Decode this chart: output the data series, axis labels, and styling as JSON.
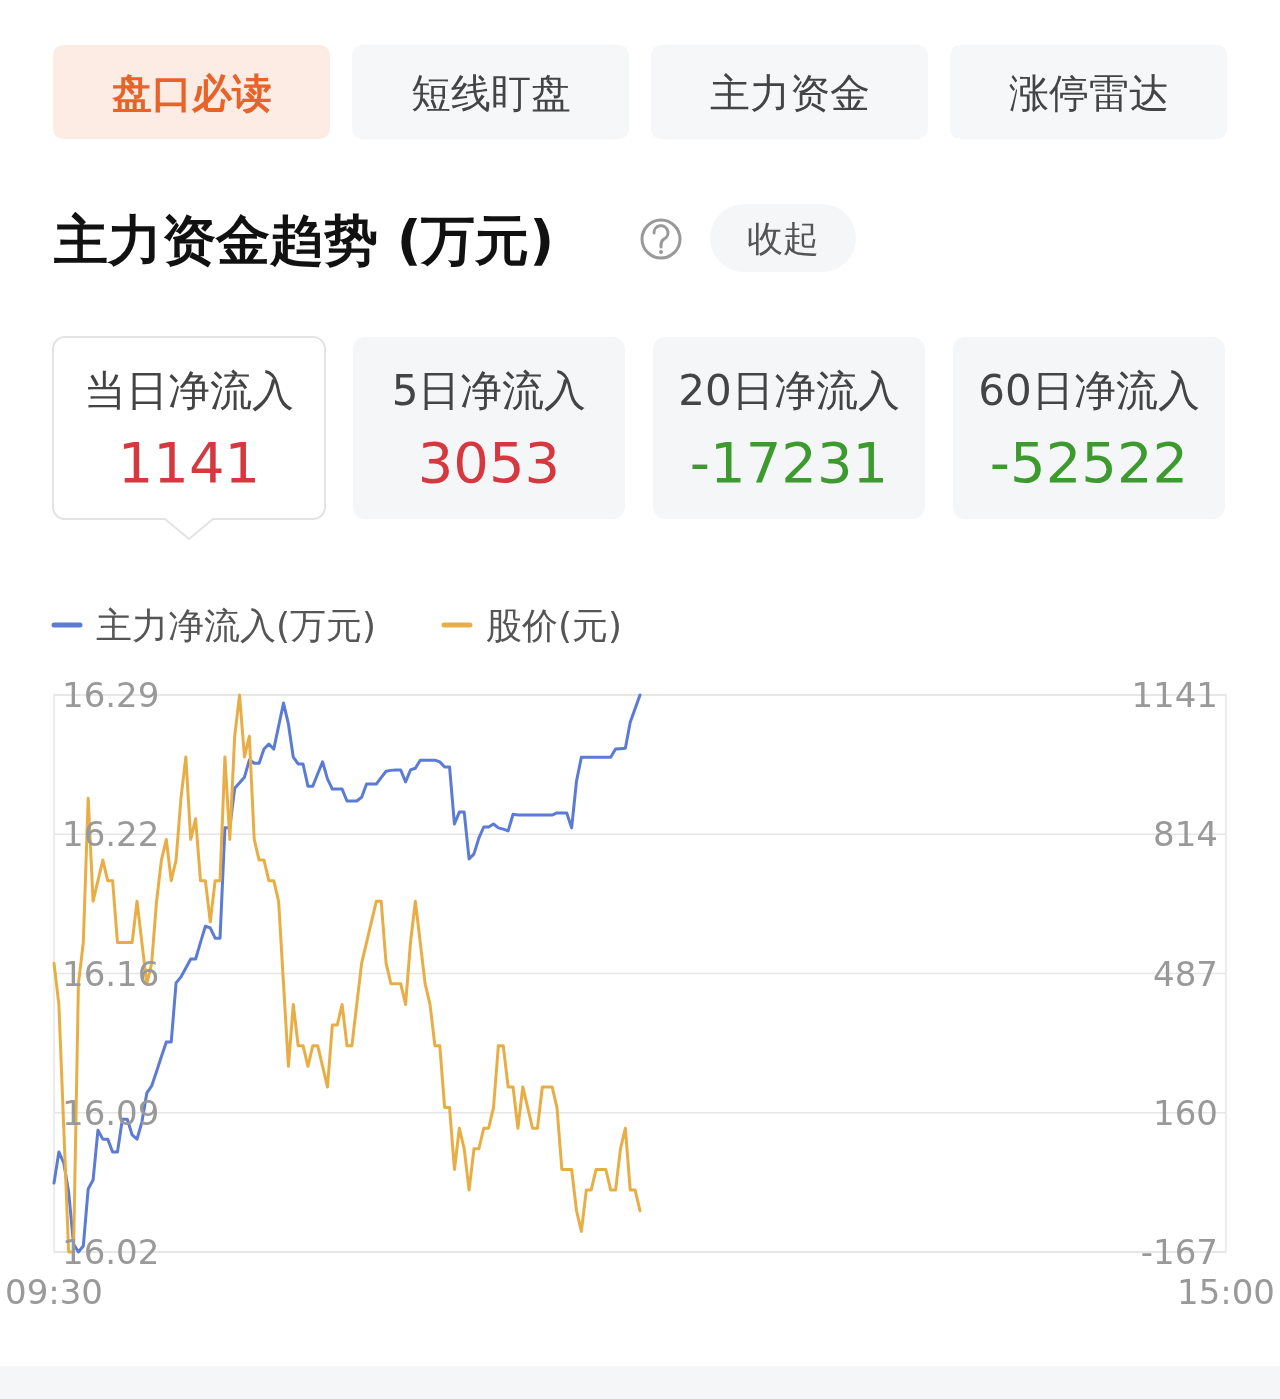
{
  "chart_data": {
    "type": "line",
    "title": "主力资金趋势 (万元)",
    "annotations": [
      "盘口必读",
      "短线盯盘",
      "主力资金",
      "涨停雷达",
      "收起",
      "当日净流入",
      "1141",
      "5日净流入",
      "3053",
      "20日净流入",
      "-17231",
      "60日净流入",
      "-52522"
    ],
    "categories": [
      "09:30",
      null,
      null,
      null,
      null,
      null,
      null,
      null,
      null,
      null,
      null,
      null,
      null,
      null,
      null,
      null,
      null,
      null,
      null,
      null,
      null,
      null,
      null,
      null,
      null,
      null,
      null,
      null,
      null,
      null,
      null,
      null,
      null,
      null,
      null,
      null,
      null,
      null,
      null,
      null,
      null,
      null,
      null,
      null,
      null,
      null,
      null,
      null,
      null,
      null,
      null,
      null,
      null,
      null,
      null,
      null,
      null,
      null,
      null,
      null,
      null,
      null,
      null,
      null,
      null,
      null,
      null,
      null,
      null,
      null,
      null,
      null,
      null,
      null,
      null,
      null,
      null,
      null,
      null,
      null,
      null,
      null,
      null,
      null,
      null,
      null,
      null,
      null,
      null,
      null,
      null,
      null,
      null,
      null,
      null,
      null,
      null,
      null,
      null,
      null,
      null,
      null,
      null,
      null,
      null,
      null,
      null,
      null,
      null,
      null,
      null,
      null,
      null,
      null,
      null,
      null,
      null,
      null,
      null,
      null,
      null,
      null,
      null,
      null,
      null,
      null,
      null,
      null,
      null,
      null,
      null,
      null,
      null,
      null,
      null,
      null,
      null,
      null,
      null,
      null,
      null,
      null,
      null,
      null,
      null,
      null,
      null,
      null,
      null,
      null,
      null,
      null,
      null,
      null,
      null,
      null,
      null,
      null,
      null,
      null,
      null,
      null,
      null,
      null,
      null,
      null,
      null,
      null,
      null,
      null,
      null,
      null,
      null,
      null,
      null,
      null,
      null,
      null,
      null,
      null,
      null,
      null,
      null,
      null,
      null,
      null,
      null,
      null,
      null,
      null,
      null,
      null,
      null,
      null,
      null,
      null,
      null,
      null,
      null,
      null,
      null,
      null,
      null,
      null,
      null,
      null,
      null,
      null,
      null,
      null,
      null,
      null,
      null,
      null,
      null,
      null,
      null,
      null,
      null,
      null,
      null,
      null,
      null,
      null,
      null,
      null,
      null,
      null,
      null,
      null,
      null,
      null,
      null,
      null,
      null,
      null,
      null,
      null,
      null,
      null,
      "15:00"
    ],
    "ylim": [
      16.02,
      16.29
    ],
    "yticks": [
      16.02,
      {
        "value": 16.0875,
        "label": "16.09"
      },
      {
        "value": 16.155,
        "label": "16.16"
      },
      {
        "value": 16.2225,
        "label": "16.22"
      },
      16.29
    ],
    "y2lim": [
      -167,
      1141
    ],
    "y2ticks": [
      -167,
      160,
      487,
      814,
      1141
    ],
    "grid": "y",
    "legend": "top left",
    "series": [
      {
        "name": "主力净流入(万元)",
        "color": "#5b7bd5",
        "axis": "y2",
        "values": [
          -5,
          68,
          42,
          -26,
          -148,
          -167,
          -153,
          -19,
          2,
          119,
          98,
          98,
          68,
          68,
          145,
          145,
          108,
          98,
          138,
          206,
          223,
          257,
          292,
          326,
          326,
          465,
          479,
          500,
          521,
          521,
          560,
          598,
          594,
          570,
          570,
          829,
          829,
          922,
          935,
          948,
          988,
          981,
          981,
          1014,
          1026,
          1014,
          1068,
          1122,
          1073,
          995,
          979,
          979,
          927,
          927,
          956,
          984,
          944,
          920,
          920,
          920,
          892,
          892,
          892,
          901,
          932,
          932,
          932,
          947,
          962,
          964,
          965,
          965,
          937,
          965,
          969,
          988,
          988,
          988,
          988,
          984,
          972,
          972,
          838,
          866,
          866,
          756,
          768,
          805,
          831,
          831,
          838,
          829,
          826,
          822,
          861,
          859,
          859,
          859,
          859,
          859,
          859,
          859,
          859,
          864,
          864,
          864,
          829,
          939,
          995,
          995,
          995,
          995,
          995,
          995,
          995,
          1014,
          1015,
          1016,
          1077,
          1109,
          1141,
          null,
          null,
          null,
          null,
          null,
          null,
          null,
          null,
          null,
          null,
          null,
          null,
          null,
          null,
          null,
          null,
          null,
          null,
          null,
          null,
          null,
          null,
          null,
          null,
          null,
          null,
          null,
          null,
          null,
          null,
          null,
          null,
          null,
          null,
          null,
          null,
          null,
          null,
          null,
          null,
          null,
          null,
          null,
          null,
          null,
          null,
          null,
          null,
          null,
          null,
          null,
          null,
          null,
          null,
          null,
          null,
          null,
          null,
          null,
          null,
          null,
          null,
          null,
          null,
          null,
          null,
          null,
          null,
          null,
          null,
          null,
          null,
          null,
          null,
          null,
          null,
          null,
          null,
          null,
          null,
          null,
          null,
          null,
          null,
          null,
          null,
          null,
          null,
          null,
          null,
          null,
          null,
          null,
          null,
          null,
          null,
          null,
          null,
          null,
          null,
          null,
          null,
          null,
          null,
          null,
          null,
          null,
          null,
          null,
          null,
          null,
          null,
          null,
          null,
          null,
          null,
          null,
          null,
          null,
          null
        ]
      },
      {
        "name": "股价(元)",
        "color": "#e8ae45",
        "axis": "y",
        "values": [
          16.16,
          16.14,
          16.08,
          16.02,
          16.02,
          16.15,
          16.17,
          16.24,
          16.19,
          16.2,
          16.21,
          16.2,
          16.2,
          16.17,
          16.17,
          16.17,
          16.17,
          16.19,
          16.17,
          16.15,
          16.16,
          16.19,
          16.21,
          16.22,
          16.2,
          16.21,
          16.24,
          16.26,
          16.22,
          16.23,
          16.2,
          16.2,
          16.18,
          16.2,
          16.2,
          16.26,
          16.22,
          16.27,
          16.29,
          16.26,
          16.27,
          16.22,
          16.21,
          16.21,
          16.2,
          16.2,
          16.19,
          16.15,
          16.11,
          16.14,
          16.12,
          16.12,
          16.11,
          16.12,
          16.12,
          16.11,
          16.1,
          16.13,
          16.13,
          16.14,
          16.12,
          16.12,
          16.14,
          16.16,
          16.17,
          16.18,
          16.19,
          16.19,
          16.16,
          16.15,
          16.15,
          16.15,
          16.14,
          16.17,
          16.19,
          16.17,
          16.15,
          16.14,
          16.12,
          16.12,
          16.09,
          16.09,
          16.06,
          16.08,
          16.07,
          16.05,
          16.07,
          16.07,
          16.08,
          16.08,
          16.09,
          16.12,
          16.12,
          16.1,
          16.1,
          16.08,
          16.1,
          16.09,
          16.08,
          16.08,
          16.1,
          16.1,
          16.1,
          16.09,
          16.06,
          16.06,
          16.06,
          16.04,
          16.03,
          16.05,
          16.05,
          16.06,
          16.06,
          16.06,
          16.05,
          16.05,
          16.07,
          16.08,
          16.05,
          16.05,
          16.04,
          null,
          null,
          null,
          null,
          null,
          null,
          null,
          null,
          null,
          null,
          null,
          null,
          null,
          null,
          null,
          null,
          null,
          null,
          null,
          null,
          null,
          null,
          null,
          null,
          null,
          null,
          null,
          null,
          null,
          null,
          null,
          null,
          null,
          null,
          null,
          null,
          null,
          null,
          null,
          null,
          null,
          null,
          null,
          null,
          null,
          null,
          null,
          null,
          null,
          null,
          null,
          null,
          null,
          null,
          null,
          null,
          null,
          null,
          null,
          null,
          null,
          null,
          null,
          null,
          null,
          null,
          null,
          null,
          null,
          null,
          null,
          null,
          null,
          null,
          null,
          null,
          null,
          null,
          null,
          null,
          null,
          null,
          null,
          null,
          null,
          null,
          null,
          null,
          null,
          null,
          null,
          null,
          null,
          null,
          null,
          null,
          null,
          null,
          null,
          null,
          null,
          null,
          null,
          null,
          null,
          null,
          null,
          null,
          null,
          null,
          null,
          null,
          null,
          null,
          null,
          null,
          null,
          null,
          null,
          null
        ]
      }
    ]
  }
}
